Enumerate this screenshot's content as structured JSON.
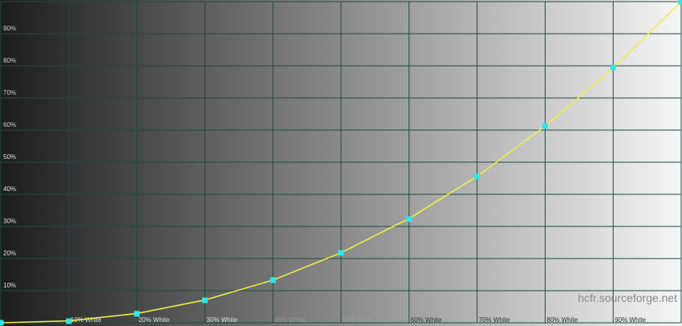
{
  "chart_data": {
    "type": "line",
    "title": "",
    "xlabel": "",
    "ylabel": "",
    "xlim": [
      0,
      100
    ],
    "ylim": [
      0,
      100
    ],
    "grid": true,
    "x_tick_labels": [
      "10% White",
      "20% White",
      "30% White",
      "40% White",
      "50% White",
      "60% White",
      "70% White",
      "80% White",
      "90% White"
    ],
    "y_tick_labels": [
      "10%",
      "20%",
      "30%",
      "40%",
      "50%",
      "60%",
      "70%",
      "80%",
      "90%"
    ],
    "x": [
      0,
      10,
      20,
      30,
      40,
      50,
      60,
      70,
      80,
      90,
      100
    ],
    "series": [
      {
        "role": "reference",
        "color": "#f2f23a",
        "values": [
          0,
          0.6,
          2.9,
          7.1,
          13.3,
          21.8,
          32.5,
          45.6,
          61.2,
          79.3,
          100
        ]
      },
      {
        "role": "measured",
        "color": "#2ee6e6",
        "values": [
          0,
          0.5,
          2.8,
          7.0,
          13.3,
          21.8,
          32.3,
          45.5,
          61.3,
          79.5,
          100
        ]
      }
    ],
    "background": "grayscale gradient black to white",
    "grid_color": "#1f4a40"
  },
  "watermark": "hcfr.sourceforge.net"
}
